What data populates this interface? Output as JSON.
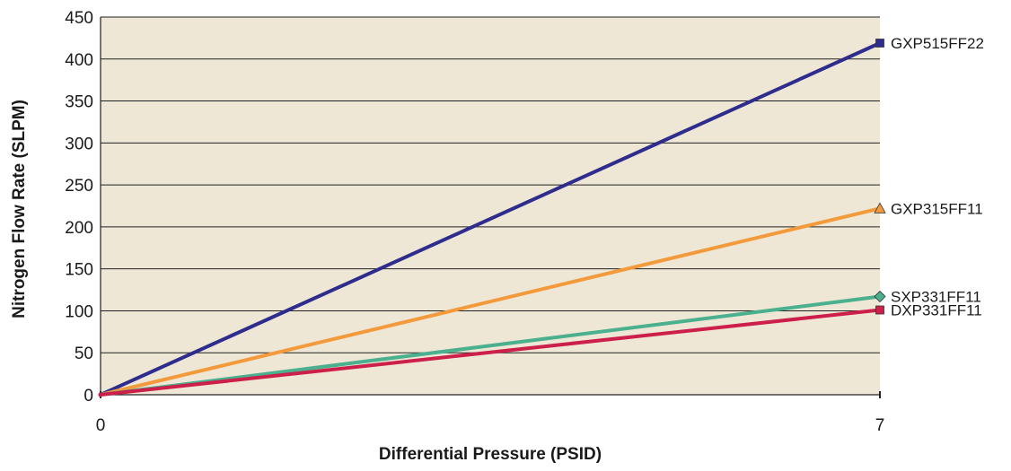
{
  "chart_data": {
    "type": "line",
    "title": "",
    "xlabel": "Differential Pressure (PSID)",
    "ylabel": "Nitrogen Flow Rate (SLPM)",
    "xlim": [
      0,
      7
    ],
    "ylim": [
      0,
      450
    ],
    "x_ticks": [
      "0",
      "7"
    ],
    "y_ticks": [
      "0",
      "50",
      "100",
      "150",
      "200",
      "250",
      "300",
      "350",
      "400",
      "450"
    ],
    "grid": true,
    "plot_background": "#efe7d5",
    "series": [
      {
        "name": "GXP515FF22",
        "x": [
          0,
          7
        ],
        "values": [
          0,
          419
        ],
        "color": "#2e2c8c",
        "marker": "square"
      },
      {
        "name": "GXP315FF11",
        "x": [
          0,
          7
        ],
        "values": [
          0,
          222
        ],
        "color": "#f39a3d",
        "marker": "triangle"
      },
      {
        "name": "SXP331FF11",
        "x": [
          0,
          7
        ],
        "values": [
          0,
          117
        ],
        "color": "#4bb08e",
        "marker": "diamond"
      },
      {
        "name": "DXP331FF11",
        "x": [
          0,
          7
        ],
        "values": [
          0,
          101
        ],
        "color": "#cc1f4a",
        "marker": "square"
      }
    ]
  }
}
